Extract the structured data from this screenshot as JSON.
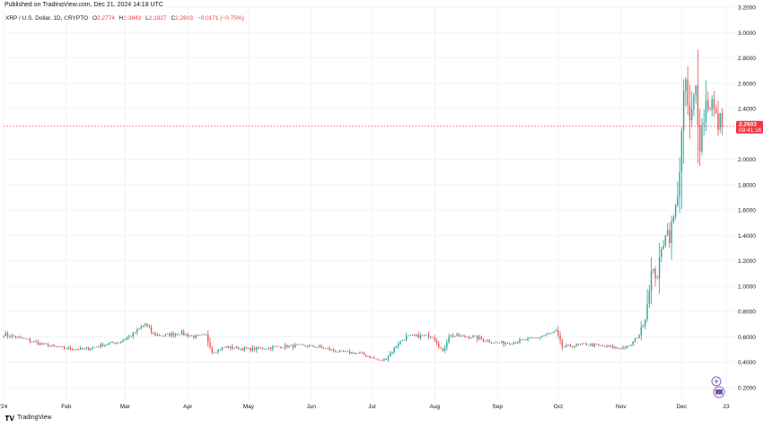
{
  "header": {
    "published": "Published on TradingView.com, Dec 21, 2024 14:18 UTC"
  },
  "legend": {
    "symbol": "XRP / U.S. Dollar, 1D, CRYPTO",
    "open_label": "O",
    "open": "2.2774",
    "high_label": "H",
    "high": "2.3843",
    "low_label": "L",
    "low": "2.1927",
    "close_label": "C",
    "close": "2.2603",
    "change": "−0.0171 (−0.75%)"
  },
  "price_marker": {
    "price": "2.2603",
    "countdown": "09:41:16",
    "color": "#f23645"
  },
  "footer": {
    "brand": "TradingView"
  },
  "colors": {
    "up": "#26a69a",
    "down": "#ef5350",
    "grid": "#f0f3fa",
    "axis_text": "#131722"
  },
  "chart_data": {
    "type": "candlestick",
    "title": "XRP / U.S. Dollar, 1D, CRYPTO",
    "y_axis_position": "right",
    "ylim": [
      0.1,
      3.2
    ],
    "y_ticks": [
      {
        "value": 3.2,
        "label": "3.2000"
      },
      {
        "value": 3.0,
        "label": "3.0000"
      },
      {
        "value": 2.8,
        "label": "2.8000"
      },
      {
        "value": 2.6,
        "label": "2.6000"
      },
      {
        "value": 2.4,
        "label": "2.4000"
      },
      {
        "value": 2.0,
        "label": "2.0000"
      },
      {
        "value": 1.8,
        "label": "1.8000"
      },
      {
        "value": 1.6,
        "label": "1.6000"
      },
      {
        "value": 1.4,
        "label": "1.4000"
      },
      {
        "value": 1.2,
        "label": "1.2000"
      },
      {
        "value": 1.0,
        "label": "1.0000"
      },
      {
        "value": 0.8,
        "label": "0.8000"
      },
      {
        "value": 0.6,
        "label": "0.6000"
      },
      {
        "value": 0.4,
        "label": "0.4000"
      },
      {
        "value": 0.2,
        "label": "0.2000"
      }
    ],
    "x_ticks": [
      {
        "date": "2024-01-01",
        "label": "'24"
      },
      {
        "date": "2024-02-01",
        "label": "Feb"
      },
      {
        "date": "2024-03-01",
        "label": "Mar"
      },
      {
        "date": "2024-04-01",
        "label": "Apr"
      },
      {
        "date": "2024-05-01",
        "label": "May"
      },
      {
        "date": "2024-06-01",
        "label": "Jun"
      },
      {
        "date": "2024-07-01",
        "label": "Jul"
      },
      {
        "date": "2024-08-01",
        "label": "Aug"
      },
      {
        "date": "2024-09-01",
        "label": "Sep"
      },
      {
        "date": "2024-10-01",
        "label": "Oct"
      },
      {
        "date": "2024-11-01",
        "label": "Nov"
      },
      {
        "date": "2024-12-01",
        "label": "Dec"
      },
      {
        "date": "2024-12-23",
        "label": "23"
      }
    ],
    "x_range": [
      "2024-01-01",
      "2024-12-27"
    ],
    "last_price": 2.2603,
    "close_anchors": [
      [
        "2024-01-01",
        0.62
      ],
      [
        "2024-01-06",
        0.6
      ],
      [
        "2024-01-12",
        0.58
      ],
      [
        "2024-01-20",
        0.54
      ],
      [
        "2024-01-31",
        0.51
      ],
      [
        "2024-02-10",
        0.5
      ],
      [
        "2024-02-20",
        0.54
      ],
      [
        "2024-02-27",
        0.56
      ],
      [
        "2024-03-05",
        0.62
      ],
      [
        "2024-03-11",
        0.7
      ],
      [
        "2024-03-15",
        0.62
      ],
      [
        "2024-03-20",
        0.61
      ],
      [
        "2024-03-28",
        0.63
      ],
      [
        "2024-04-05",
        0.6
      ],
      [
        "2024-04-10",
        0.61
      ],
      [
        "2024-04-13",
        0.48
      ],
      [
        "2024-04-20",
        0.52
      ],
      [
        "2024-05-01",
        0.5
      ],
      [
        "2024-05-15",
        0.52
      ],
      [
        "2024-05-25",
        0.53
      ],
      [
        "2024-06-05",
        0.52
      ],
      [
        "2024-06-15",
        0.48
      ],
      [
        "2024-06-25",
        0.47
      ],
      [
        "2024-07-05",
        0.41
      ],
      [
        "2024-07-08",
        0.43
      ],
      [
        "2024-07-14",
        0.55
      ],
      [
        "2024-07-18",
        0.6
      ],
      [
        "2024-07-31",
        0.61
      ],
      [
        "2024-08-05",
        0.48
      ],
      [
        "2024-08-08",
        0.61
      ],
      [
        "2024-08-20",
        0.6
      ],
      [
        "2024-09-01",
        0.55
      ],
      [
        "2024-09-10",
        0.56
      ],
      [
        "2024-09-20",
        0.59
      ],
      [
        "2024-09-30",
        0.64
      ],
      [
        "2024-10-03",
        0.52
      ],
      [
        "2024-10-15",
        0.54
      ],
      [
        "2024-10-31",
        0.51
      ],
      [
        "2024-11-05",
        0.52
      ],
      [
        "2024-11-10",
        0.62
      ],
      [
        "2024-11-13",
        0.75
      ],
      [
        "2024-11-16",
        1.1
      ],
      [
        "2024-11-19",
        1.09
      ],
      [
        "2024-11-23",
        1.45
      ],
      [
        "2024-11-25",
        1.4
      ],
      [
        "2024-11-28",
        1.6
      ],
      [
        "2024-11-30",
        1.93
      ],
      [
        "2024-12-02",
        2.44
      ],
      [
        "2024-12-03",
        2.62
      ],
      [
        "2024-12-04",
        2.41
      ],
      [
        "2024-12-05",
        2.25
      ],
      [
        "2024-12-08",
        2.56
      ],
      [
        "2024-12-10",
        2.15
      ],
      [
        "2024-12-13",
        2.45
      ],
      [
        "2024-12-16",
        2.45
      ],
      [
        "2024-12-18",
        2.3
      ],
      [
        "2024-12-20",
        2.28
      ],
      [
        "2024-12-21",
        2.2603
      ]
    ]
  }
}
